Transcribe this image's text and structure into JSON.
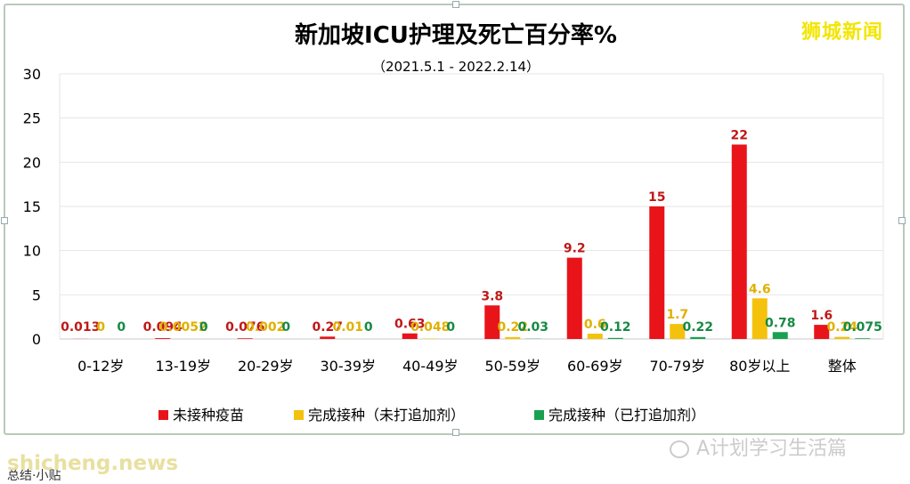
{
  "watermarks": {
    "top_right": "狮城新闻",
    "wechat": "A计划学习生活篇",
    "bottom_left": "shicheng.news"
  },
  "footer_text": "总结·小贴",
  "chart_data": {
    "type": "bar",
    "title": "新加坡ICU护理及死亡百分率%",
    "subtitle": "（2021.5.1 - 2022.2.14）",
    "xlabel": "",
    "ylabel": "",
    "ylim": [
      0,
      30
    ],
    "yticks": [
      0,
      5,
      10,
      15,
      20,
      25,
      30
    ],
    "grid": true,
    "legend_position": "bottom",
    "categories": [
      "0-12岁",
      "13-19岁",
      "20-29岁",
      "30-39岁",
      "40-49岁",
      "50-59岁",
      "60-69岁",
      "70-79岁",
      "80岁以上",
      "整体"
    ],
    "series": [
      {
        "name": "未接种疫苗",
        "color": "#e8141a",
        "values": [
          0.013,
          0.094,
          0.076,
          0.27,
          0.63,
          3.8,
          9.2,
          15,
          22,
          1.6
        ],
        "labels": [
          "0.013",
          "0.094",
          "0.076",
          "0.27",
          "0.63",
          "3.8",
          "9.2",
          "15",
          "22",
          "1.6"
        ]
      },
      {
        "name": "完成接种（未打追加剂）",
        "color": "#f4c20d",
        "values": [
          0,
          0.0052,
          0.002,
          0.01,
          0.048,
          0.22,
          0.6,
          1.7,
          4.6,
          0.24
        ],
        "labels": [
          "0",
          "0.0052",
          "0.002",
          "0.01",
          "0.048",
          "0.22",
          "0.6",
          "1.7",
          "4.6",
          "0.24"
        ]
      },
      {
        "name": "完成接种（已打追加剂）",
        "color": "#1aa150",
        "values": [
          0,
          0,
          0,
          0,
          0,
          0.03,
          0.12,
          0.22,
          0.78,
          0.075
        ],
        "labels": [
          "0",
          "0",
          "0",
          "0",
          "0",
          "0.03",
          "0.12",
          "0.22",
          "0.78",
          "0.075"
        ]
      }
    ]
  }
}
